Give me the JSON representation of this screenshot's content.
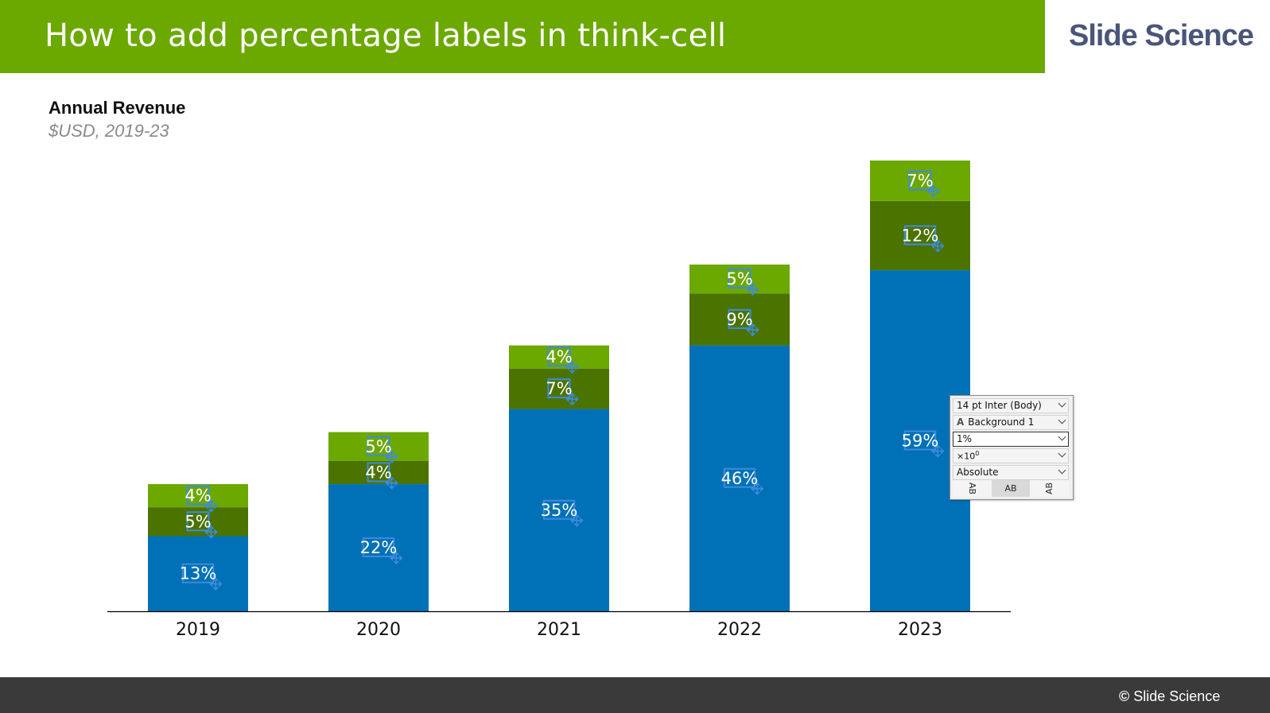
{
  "header": {
    "title": "How to add percentage labels in think-cell",
    "brand": "Slide Science",
    "accent": "#6ba800"
  },
  "footer": {
    "copyright_symbol": "©",
    "text": "Slide Science"
  },
  "chart_data": {
    "type": "bar",
    "stacked": true,
    "title": "Annual Revenue",
    "subtitle": "$USD, 2019-23",
    "categories": [
      "2019",
      "2020",
      "2021",
      "2022",
      "2023"
    ],
    "series": [
      {
        "values": [
          13,
          22,
          35,
          46,
          59
        ],
        "labels": [
          "13%",
          "22%",
          "35%",
          "46%",
          "59%"
        ],
        "color": "#0071b6"
      },
      {
        "values": [
          5,
          4,
          7,
          9,
          12
        ],
        "labels": [
          "5%",
          "4%",
          "7%",
          "9%",
          "12%"
        ],
        "color": "#4b7300"
      },
      {
        "values": [
          4,
          5,
          4,
          5,
          7
        ],
        "labels": [
          "4%",
          "5%",
          "4%",
          "5%",
          "7%"
        ],
        "color": "#6ba800"
      }
    ],
    "ylim": [
      0,
      80
    ],
    "grid": false,
    "legend": "none"
  },
  "label_popup": {
    "font": "14 pt Inter (Body)",
    "color_icon": "A",
    "color": "Background 1",
    "number_format": "1%",
    "magnitude": "×10",
    "magnitude_exp": "0",
    "display_mode": "Absolute",
    "orientation_tabs": [
      "AB",
      "AB",
      "AB"
    ],
    "selected_tab": 1
  }
}
